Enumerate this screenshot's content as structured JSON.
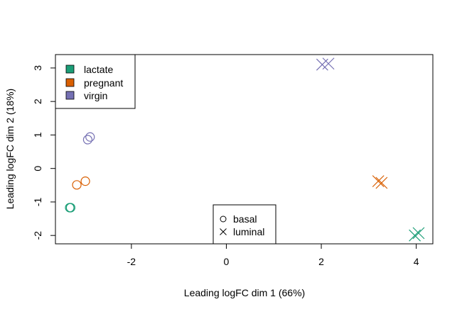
{
  "chart_data": {
    "type": "scatter",
    "xlabel": "Leading logFC dim 1 (66%)",
    "ylabel": "Leading logFC dim 2 (18%)",
    "xlim": [
      -3.6,
      4.35
    ],
    "ylim": [
      -2.25,
      3.4
    ],
    "xticks": [
      -2,
      0,
      2,
      4
    ],
    "yticks": [
      -2,
      -1,
      0,
      1,
      2,
      3
    ],
    "xtick_labels": [
      "-2",
      "0",
      "2",
      "4"
    ],
    "ytick_labels": [
      "-2",
      "-1",
      "0",
      "1",
      "2",
      "3"
    ],
    "grid": false,
    "groups": [
      {
        "name": "lactate",
        "color": "#1b9e77"
      },
      {
        "name": "pregnant",
        "color": "#d95f02"
      },
      {
        "name": "virgin",
        "color": "#7570b3"
      }
    ],
    "shapes": [
      {
        "name": "basal",
        "symbol": "circle"
      },
      {
        "name": "luminal",
        "symbol": "cross"
      }
    ],
    "points": [
      {
        "group": "lactate",
        "shape": "basal",
        "x": -3.3,
        "y": -1.17
      },
      {
        "group": "lactate",
        "shape": "basal",
        "x": -3.28,
        "y": -1.17
      },
      {
        "group": "pregnant",
        "shape": "basal",
        "x": -3.15,
        "y": -0.49
      },
      {
        "group": "pregnant",
        "shape": "basal",
        "x": -2.97,
        "y": -0.38
      },
      {
        "group": "virgin",
        "shape": "basal",
        "x": -2.92,
        "y": 0.86
      },
      {
        "group": "virgin",
        "shape": "basal",
        "x": -2.87,
        "y": 0.94
      },
      {
        "group": "lactate",
        "shape": "luminal",
        "x": 3.97,
        "y": -2.0
      },
      {
        "group": "lactate",
        "shape": "luminal",
        "x": 4.05,
        "y": -1.93
      },
      {
        "group": "pregnant",
        "shape": "luminal",
        "x": 3.2,
        "y": -0.38
      },
      {
        "group": "pregnant",
        "shape": "luminal",
        "x": 3.27,
        "y": -0.43
      },
      {
        "group": "virgin",
        "shape": "luminal",
        "x": 2.02,
        "y": 3.1
      },
      {
        "group": "virgin",
        "shape": "luminal",
        "x": 2.15,
        "y": 3.13
      }
    ],
    "legends": [
      {
        "placement": "top-left",
        "entries": [
          "lactate",
          "pregnant",
          "virgin"
        ],
        "symbol": "filled-square"
      },
      {
        "placement": "bottom-center",
        "entries": [
          "basal",
          "luminal"
        ],
        "symbol": "shape"
      }
    ]
  }
}
